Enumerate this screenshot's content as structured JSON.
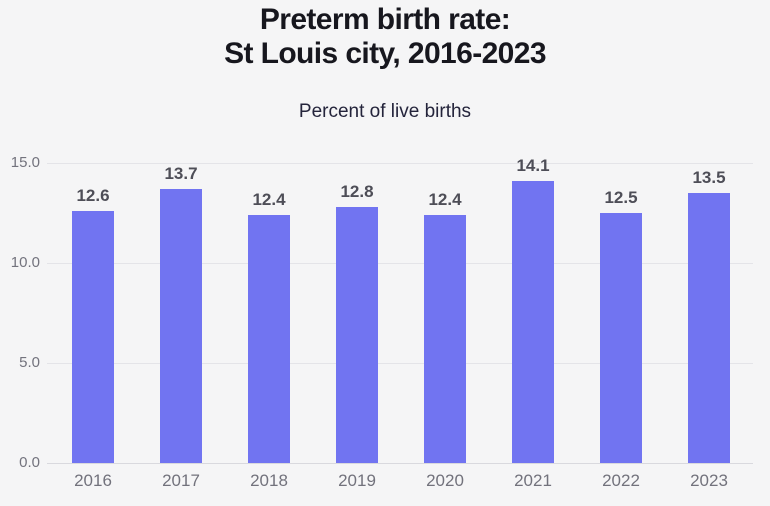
{
  "header": {
    "title_line1": "Preterm birth rate:",
    "title_line2": "St Louis city, 2016-2023",
    "subtitle": "Percent of live births"
  },
  "chart_data": {
    "type": "bar",
    "title": "Preterm birth rate: St Louis city, 2016-2023",
    "subtitle": "Percent of live births",
    "categories": [
      "2016",
      "2017",
      "2018",
      "2019",
      "2020",
      "2021",
      "2022",
      "2023"
    ],
    "values": [
      12.6,
      13.7,
      12.4,
      12.8,
      12.4,
      14.1,
      12.5,
      13.5
    ],
    "data_labels": [
      "12.6",
      "13.7",
      "12.4",
      "12.8",
      "12.4",
      "14.1",
      "12.5",
      "13.5"
    ],
    "xlabel": "",
    "ylabel": "Percent of live births",
    "ylim": [
      0,
      15
    ],
    "yticks": [
      15.0,
      10.0,
      5.0,
      0.0
    ],
    "ytick_labels": [
      "15.0",
      "10.0",
      "5.0",
      "0.0"
    ],
    "grid": "horizontal",
    "legend": "none",
    "colors": {
      "bar": "#7174f1",
      "background": "#f5f5f6",
      "gridline": "#e4e4e8",
      "title_text": "#17171e",
      "subtitle_text": "#24243b",
      "value_label_text": "#4e4e57",
      "axis_label_text": "#72727c"
    }
  }
}
